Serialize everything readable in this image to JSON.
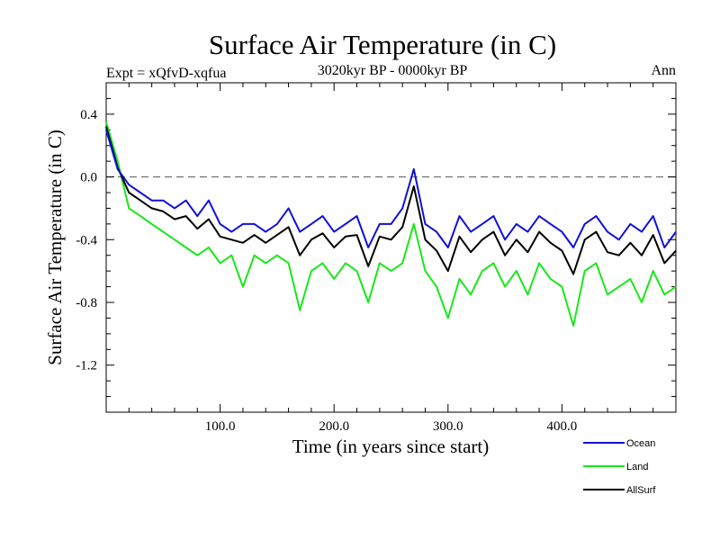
{
  "header": {
    "title": "Surface Air Temperature (in C)",
    "subtitle": "3020kyr BP - 0000kyr BP",
    "expt": "Expt = xQfvD-xqfua",
    "season": "Ann"
  },
  "chart_data": {
    "type": "line",
    "title": "Surface Air Temperature (in C)",
    "subtitle": "3020kyr BP - 0000kyr BP",
    "xlabel": "Time (in years since start)",
    "ylabel": "Surface Air Temperature (in C)",
    "xlim": [
      0,
      500
    ],
    "ylim": [
      -1.5,
      0.6
    ],
    "x_ticks": [
      100,
      200,
      300,
      400
    ],
    "x_tick_labels": [
      "100.0",
      "200.0",
      "300.0",
      "400.0"
    ],
    "y_ticks": [
      0.4,
      0.0,
      -0.4,
      -0.8,
      -1.2
    ],
    "y_tick_labels": [
      "0.4",
      "0.0",
      "-0.4",
      "-0.8",
      "-1.2"
    ],
    "reference_line": 0.0,
    "legend_position": "bottom-right",
    "x": [
      0,
      10,
      20,
      30,
      40,
      50,
      60,
      70,
      80,
      90,
      100,
      110,
      120,
      130,
      140,
      150,
      160,
      170,
      180,
      190,
      200,
      210,
      220,
      230,
      240,
      250,
      260,
      270,
      280,
      290,
      300,
      310,
      320,
      330,
      340,
      350,
      360,
      370,
      380,
      390,
      400,
      410,
      420,
      430,
      440,
      450,
      460,
      470,
      480,
      490,
      500
    ],
    "series": [
      {
        "name": "Ocean",
        "color": "#1010d8",
        "values": [
          0.3,
          0.05,
          -0.05,
          -0.1,
          -0.15,
          -0.15,
          -0.2,
          -0.15,
          -0.25,
          -0.15,
          -0.3,
          -0.35,
          -0.3,
          -0.3,
          -0.35,
          -0.3,
          -0.2,
          -0.35,
          -0.3,
          -0.25,
          -0.35,
          -0.3,
          -0.25,
          -0.45,
          -0.3,
          -0.3,
          -0.2,
          0.05,
          -0.3,
          -0.35,
          -0.45,
          -0.25,
          -0.35,
          -0.3,
          -0.25,
          -0.4,
          -0.3,
          -0.35,
          -0.25,
          -0.3,
          -0.35,
          -0.45,
          -0.3,
          -0.25,
          -0.35,
          -0.4,
          -0.3,
          -0.35,
          -0.25,
          -0.45,
          -0.35
        ]
      },
      {
        "name": "Land",
        "color": "#18e818",
        "values": [
          0.35,
          0.1,
          -0.2,
          -0.25,
          -0.3,
          -0.35,
          -0.4,
          -0.45,
          -0.5,
          -0.45,
          -0.55,
          -0.5,
          -0.7,
          -0.5,
          -0.55,
          -0.5,
          -0.55,
          -0.85,
          -0.6,
          -0.55,
          -0.65,
          -0.55,
          -0.6,
          -0.8,
          -0.55,
          -0.6,
          -0.55,
          -0.3,
          -0.6,
          -0.7,
          -0.9,
          -0.65,
          -0.75,
          -0.6,
          -0.55,
          -0.7,
          -0.6,
          -0.75,
          -0.55,
          -0.65,
          -0.7,
          -0.95,
          -0.6,
          -0.55,
          -0.75,
          -0.7,
          -0.65,
          -0.8,
          -0.6,
          -0.75,
          -0.7
        ]
      },
      {
        "name": "AllSurf",
        "color": "#000000",
        "values": [
          0.32,
          0.06,
          -0.1,
          -0.15,
          -0.2,
          -0.22,
          -0.27,
          -0.25,
          -0.33,
          -0.27,
          -0.38,
          -0.4,
          -0.42,
          -0.37,
          -0.42,
          -0.37,
          -0.32,
          -0.5,
          -0.4,
          -0.36,
          -0.45,
          -0.38,
          -0.37,
          -0.57,
          -0.38,
          -0.4,
          -0.32,
          -0.06,
          -0.4,
          -0.47,
          -0.6,
          -0.38,
          -0.48,
          -0.4,
          -0.35,
          -0.5,
          -0.4,
          -0.48,
          -0.35,
          -0.42,
          -0.47,
          -0.62,
          -0.4,
          -0.35,
          -0.48,
          -0.5,
          -0.42,
          -0.5,
          -0.37,
          -0.55,
          -0.47
        ]
      }
    ]
  }
}
